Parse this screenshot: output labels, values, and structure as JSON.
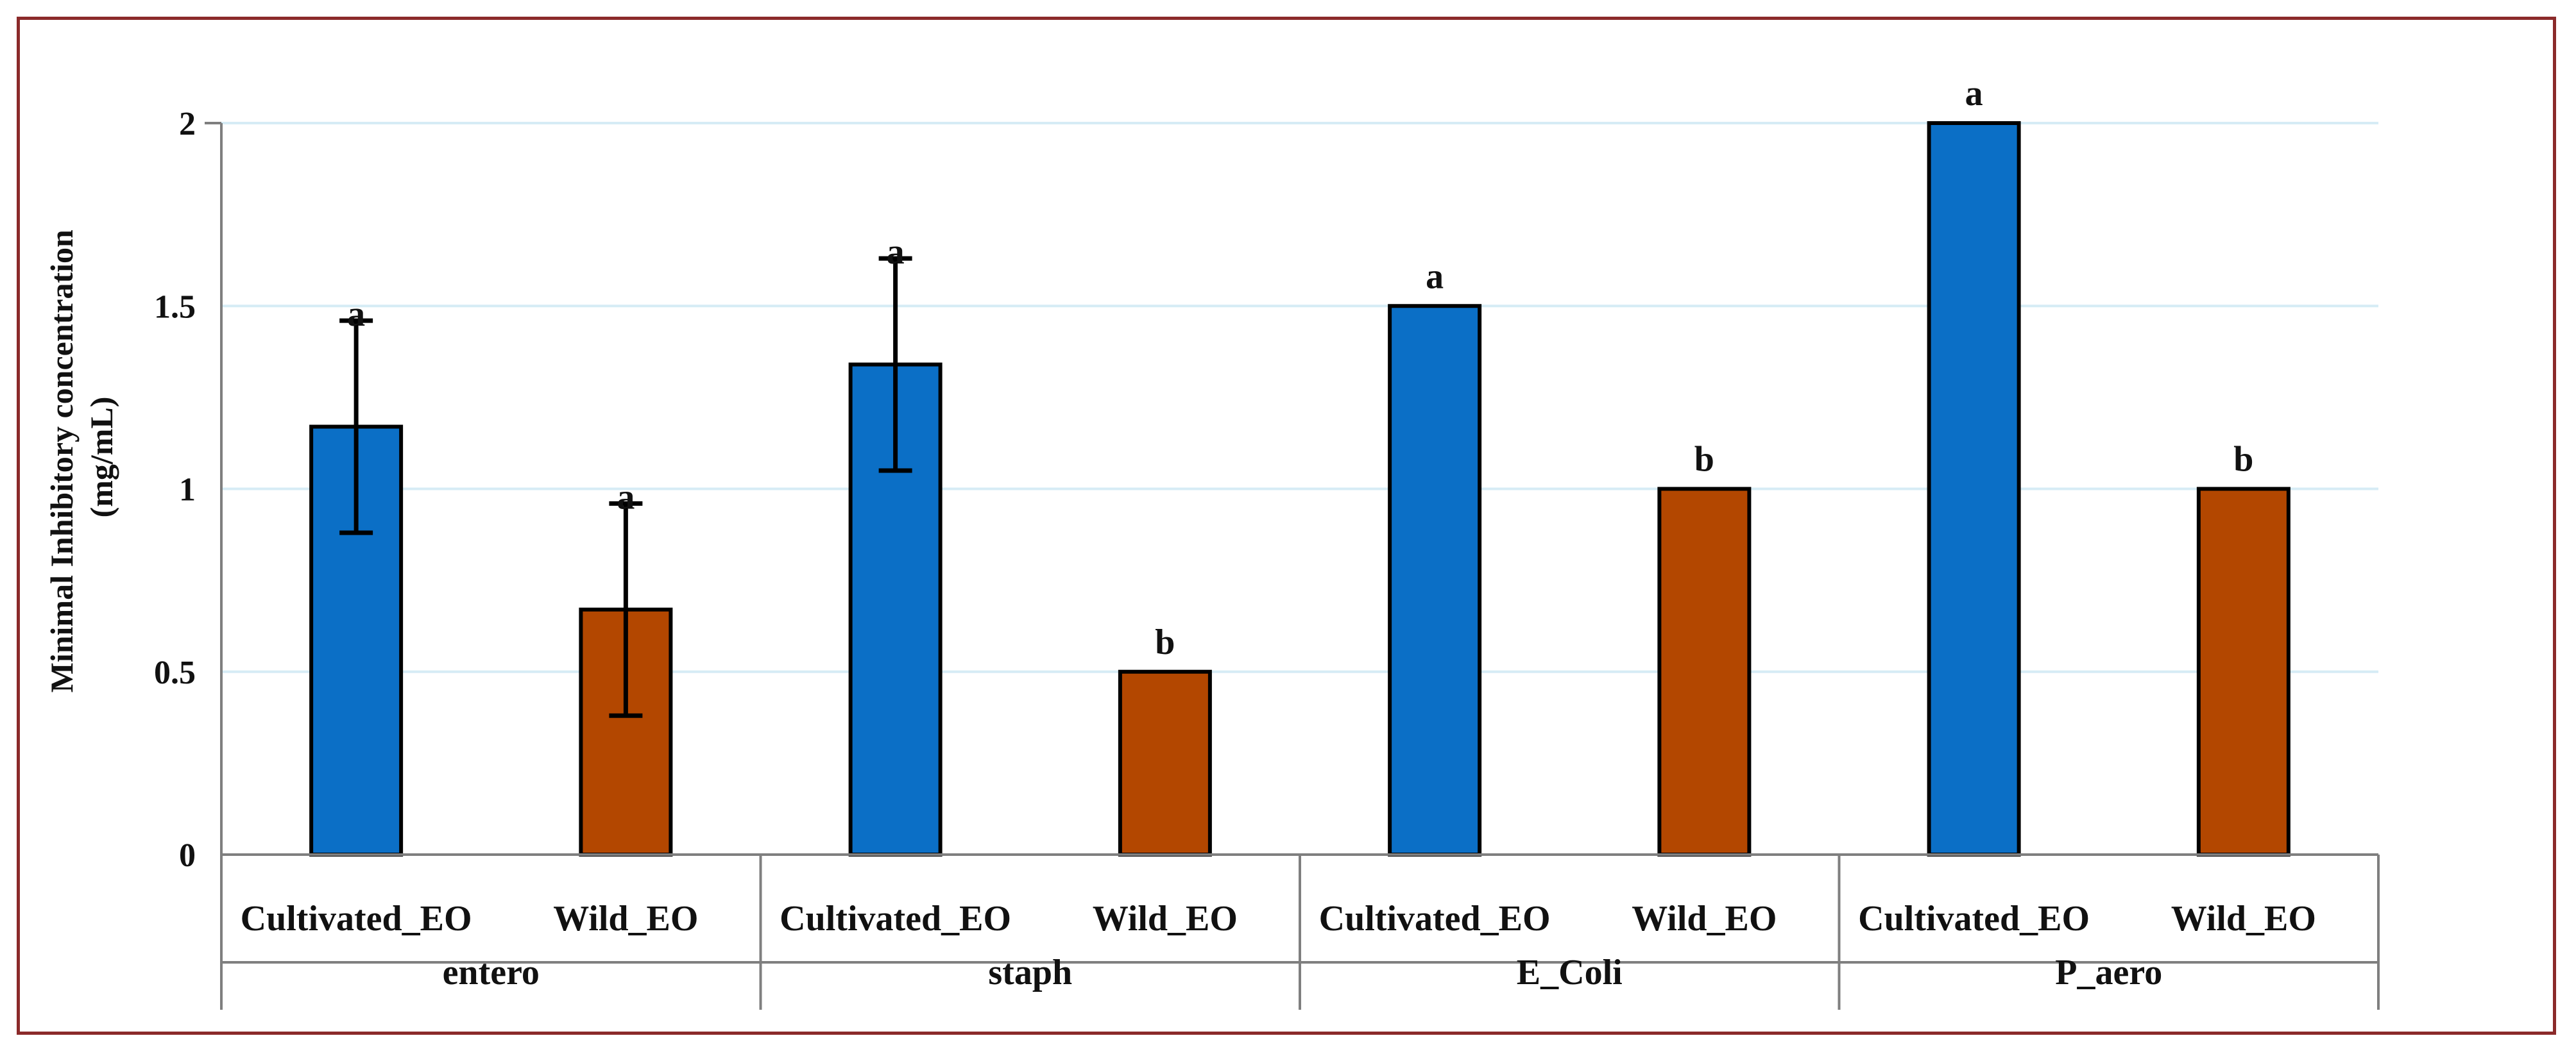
{
  "chart_data": {
    "type": "bar",
    "ylabel_lines": [
      "Minimal Inhibitory concentration",
      "(mg/mL)"
    ],
    "ylim": [
      0,
      2
    ],
    "yticks": [
      0,
      0.5,
      1,
      1.5,
      2
    ],
    "ytick_labels": [
      "0",
      "0.5",
      "1",
      "1.5",
      "2"
    ],
    "grid": true,
    "groups": [
      {
        "name": "entero",
        "bars": [
          {
            "category": "Cultivated_EO",
            "value": 1.17,
            "error": 0.29,
            "letter": "a"
          },
          {
            "category": "Wild_EO",
            "value": 0.67,
            "error": 0.29,
            "letter": "a"
          }
        ]
      },
      {
        "name": "staph",
        "bars": [
          {
            "category": "Cultivated_EO",
            "value": 1.34,
            "error": 0.29,
            "letter": "a"
          },
          {
            "category": "Wild_EO",
            "value": 0.5,
            "error": 0,
            "letter": "b"
          }
        ]
      },
      {
        "name": "E_Coli",
        "bars": [
          {
            "category": "Cultivated_EO",
            "value": 1.5,
            "error": 0,
            "letter": "a"
          },
          {
            "category": "Wild_EO",
            "value": 1.0,
            "error": 0,
            "letter": "b"
          }
        ]
      },
      {
        "name": "P_aero",
        "bars": [
          {
            "category": "Cultivated_EO",
            "value": 2.0,
            "error": 0,
            "letter": "a"
          },
          {
            "category": "Wild_EO",
            "value": 1.0,
            "error": 0,
            "letter": "b"
          }
        ]
      }
    ],
    "colors": {
      "Cultivated_EO": "#0b6fc6",
      "Wild_EO": "#b34700"
    },
    "grid_color": "#d6ecf5",
    "axis_color": "#7f7f7f",
    "bar_outline": "#000000"
  }
}
